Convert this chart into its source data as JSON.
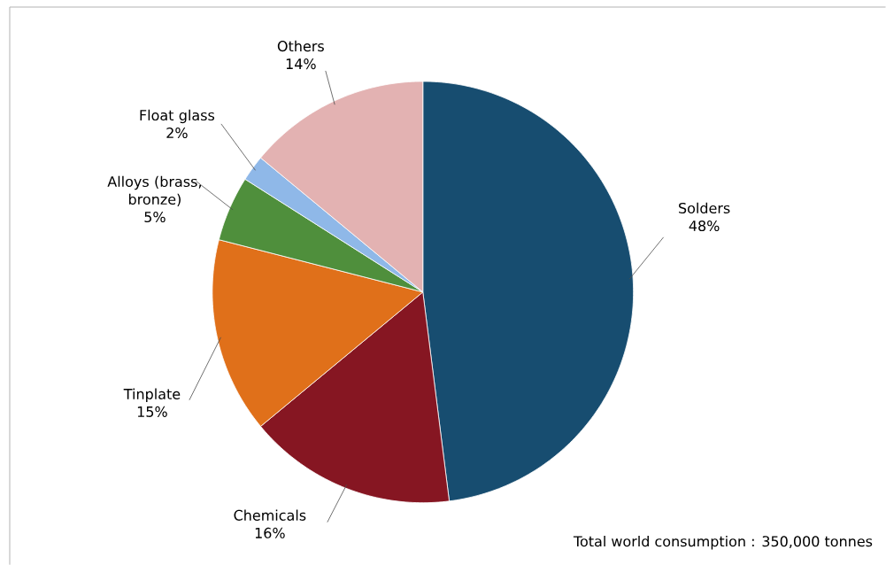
{
  "chart_data": {
    "type": "pie",
    "categories": [
      "Solders",
      "Chemicals",
      "Tinplate",
      "Alloys (brass, bronze)",
      "Float glass",
      "Others"
    ],
    "values": [
      48,
      16,
      15,
      5,
      2,
      14
    ],
    "value_labels": [
      "48%",
      "16%",
      "15%",
      "5%",
      "2%",
      "14%"
    ],
    "colors": [
      "#174d70",
      "#861622",
      "#e0701a",
      "#4f8f3c",
      "#8fb8e8",
      "#e3b2b2"
    ],
    "annotations": [
      "Total world consumption : 350,000 tonnes"
    ]
  }
}
